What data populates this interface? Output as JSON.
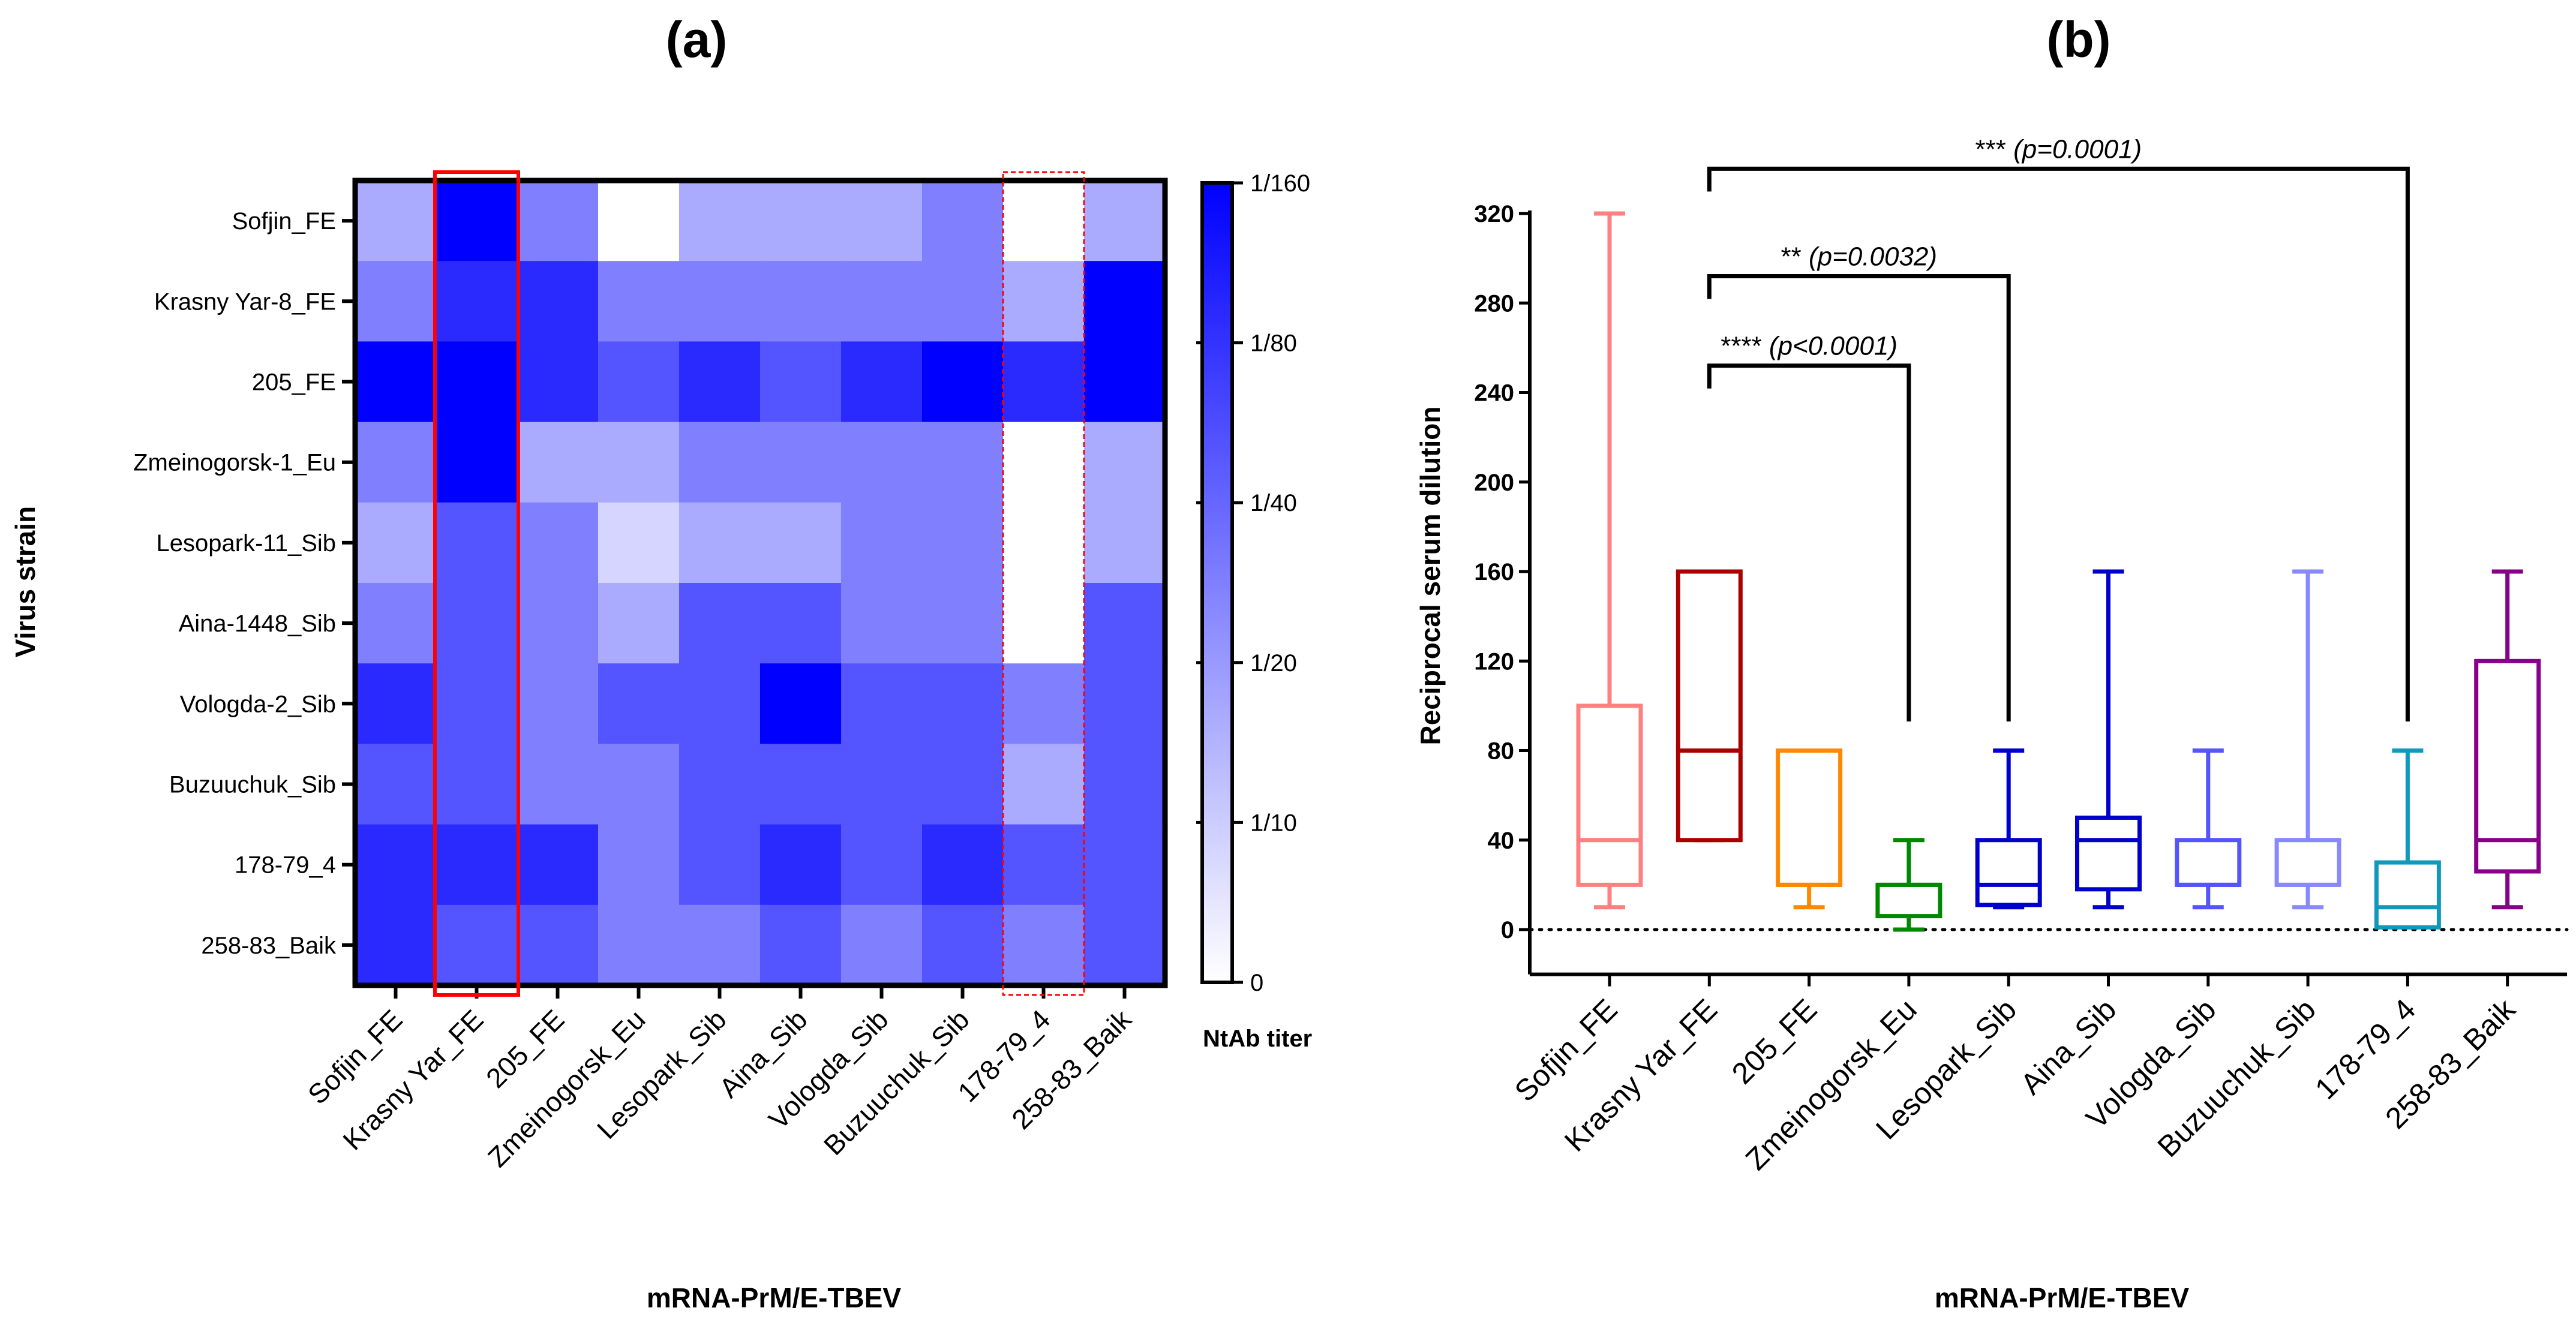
{
  "chart_data": [
    {
      "type": "heatmap",
      "panel_label": "(a)",
      "xlabel": "mRNA-PrM/E-TBEV",
      "ylabel": "Virus strain",
      "x_categories": [
        "Sofjin_FE",
        "Krasny Yar_FE",
        "205_FE",
        "Zmeinogorsk_Eu",
        "Lesopark_Sib",
        "Aina_Sib",
        "Vologda_Sib",
        "Buzuuchuk_Sib",
        "178-79_4",
        "258-83_Baik"
      ],
      "y_categories": [
        "Sofjin_FE",
        "Krasny Yar-8_FE",
        "205_FE",
        "Zmeinogorsk-1_Eu",
        "Lesopark-11_Sib",
        "Aina-1448_Sib",
        "Vologda-2_Sib",
        "Buzuuchuk_Sib",
        "178-79_4",
        "258-83_Baik"
      ],
      "values_reciprocal_titer": [
        [
          10,
          160,
          20,
          0,
          10,
          10,
          10,
          20,
          0,
          10
        ],
        [
          20,
          80,
          80,
          20,
          20,
          20,
          20,
          20,
          10,
          160
        ],
        [
          160,
          160,
          80,
          40,
          80,
          40,
          80,
          160,
          80,
          160
        ],
        [
          20,
          160,
          10,
          10,
          20,
          20,
          20,
          20,
          0,
          10
        ],
        [
          10,
          40,
          20,
          5,
          10,
          10,
          20,
          20,
          0,
          10
        ],
        [
          20,
          40,
          20,
          10,
          40,
          40,
          20,
          20,
          0,
          40
        ],
        [
          80,
          40,
          20,
          40,
          40,
          160,
          40,
          40,
          20,
          40
        ],
        [
          40,
          40,
          20,
          20,
          40,
          40,
          40,
          40,
          10,
          40
        ],
        [
          80,
          80,
          80,
          20,
          40,
          80,
          40,
          80,
          40,
          40
        ],
        [
          80,
          40,
          40,
          20,
          20,
          40,
          20,
          40,
          20,
          40
        ]
      ],
      "colorbar": {
        "title": "NtAb titer",
        "tick_labels": [
          "1/160",
          "1/80",
          "1/40",
          "1/20",
          "1/10",
          "0"
        ],
        "color_low": "#ffffff",
        "color_high": "#0000ff"
      },
      "highlight_solid_column": "Krasny Yar_FE",
      "highlight_dashed_column": "178-79_4",
      "highlight_color": "#ff0000"
    },
    {
      "type": "box",
      "panel_label": "(b)",
      "xlabel": "mRNA-PrM/E-TBEV",
      "ylabel": "Reciprocal serum dilution",
      "ylim": [
        -20,
        320
      ],
      "yticks": [
        0,
        40,
        80,
        120,
        160,
        200,
        240,
        280,
        320
      ],
      "reference_line": 0,
      "categories": [
        "Sofjin_FE",
        "Krasny Yar_FE",
        "205_FE",
        "Zmeinogorsk_Eu",
        "Lesopark_Sib",
        "Aina_Sib",
        "Vologda_Sib",
        "Buzuuchuk_Sib",
        "178-79_4",
        "258-83_Baik"
      ],
      "boxes": [
        {
          "min": 10,
          "q1": 20,
          "median": 40,
          "q3": 100,
          "max": 320,
          "color": "#ff8080"
        },
        {
          "min": 40,
          "q1": 40,
          "median": 80,
          "q3": 160,
          "max": 160,
          "color": "#aa0000"
        },
        {
          "min": 10,
          "q1": 20,
          "median": 20,
          "q3": 80,
          "max": 80,
          "color": "#ff8800"
        },
        {
          "min": 0,
          "q1": 6,
          "median": 20,
          "q3": 20,
          "max": 40,
          "color": "#008800"
        },
        {
          "min": 10,
          "q1": 11,
          "median": 20,
          "q3": 40,
          "max": 80,
          "color": "#0000cc"
        },
        {
          "min": 10,
          "q1": 18,
          "median": 40,
          "q3": 50,
          "max": 160,
          "color": "#0000cc"
        },
        {
          "min": 10,
          "q1": 20,
          "median": 20,
          "q3": 40,
          "max": 80,
          "color": "#5555ff"
        },
        {
          "min": 10,
          "q1": 20,
          "median": 20,
          "q3": 40,
          "max": 160,
          "color": "#8888ff"
        },
        {
          "min": 1,
          "q1": 1,
          "median": 10,
          "q3": 30,
          "max": 80,
          "color": "#1199bb"
        },
        {
          "min": 10,
          "q1": 26,
          "median": 40,
          "q3": 120,
          "max": 160,
          "color": "#880088"
        }
      ],
      "comparisons": [
        {
          "from": "Krasny Yar_FE",
          "to": "Zmeinogorsk_Eu",
          "stars": "****",
          "p": "(p<0.0001)",
          "level": 252
        },
        {
          "from": "Krasny Yar_FE",
          "to": "Lesopark_Sib",
          "stars": "**",
          "p": "(p=0.0032)",
          "level": 292
        },
        {
          "from": "Krasny Yar_FE",
          "to": "178-79_4",
          "stars": "***",
          "p": "(p=0.0001)",
          "level": 340
        }
      ]
    }
  ]
}
